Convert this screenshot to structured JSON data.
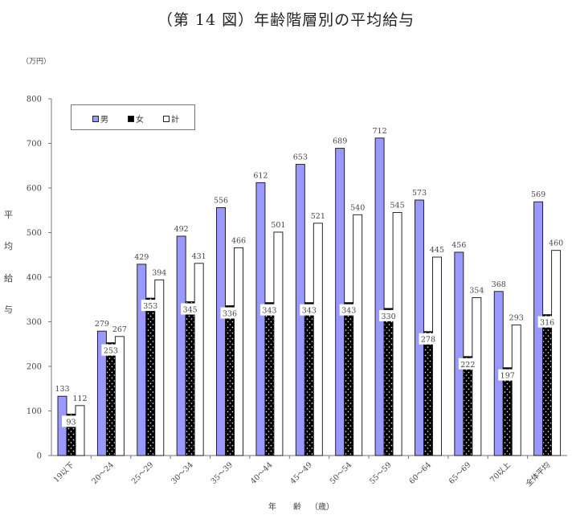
{
  "title": "（第 14 図）年齢階層別の平均給与",
  "unit_label": "（万円）",
  "y_axis_chars": [
    "平",
    "均",
    "給",
    "与"
  ],
  "x_axis_chars": [
    "年",
    "齢",
    "（歳）"
  ],
  "legend": [
    {
      "name": "男",
      "color": "#9999ff"
    },
    {
      "name": "女",
      "color": "#000000"
    },
    {
      "name": "計",
      "color": "#ffffff"
    }
  ],
  "chart_data": {
    "type": "bar",
    "title": "（第 14 図）年齢階層別の平均給与",
    "xlabel": "年 齢（歳）",
    "ylabel": "平均給与（万円）",
    "ylim": [
      0,
      800
    ],
    "yticks": [
      0,
      100,
      200,
      300,
      400,
      500,
      600,
      700,
      800
    ],
    "grid": false,
    "legend_position": "top-left inside",
    "categories": [
      "19以下",
      "20～24",
      "25～29",
      "30～34",
      "35～39",
      "40～44",
      "45～49",
      "50～54",
      "55～59",
      "60～64",
      "65～69",
      "70以上",
      "全体平均"
    ],
    "series": [
      {
        "name": "男",
        "color": "#9999ff",
        "values": [
          133,
          279,
          429,
          492,
          556,
          612,
          653,
          689,
          712,
          573,
          456,
          368,
          569
        ]
      },
      {
        "name": "女",
        "color": "#000000",
        "values": [
          93,
          253,
          353,
          345,
          336,
          343,
          343,
          343,
          330,
          278,
          222,
          197,
          316
        ]
      },
      {
        "name": "計",
        "color": "#ffffff",
        "values": [
          112,
          267,
          394,
          431,
          466,
          501,
          521,
          540,
          545,
          445,
          354,
          293,
          460
        ]
      }
    ]
  }
}
